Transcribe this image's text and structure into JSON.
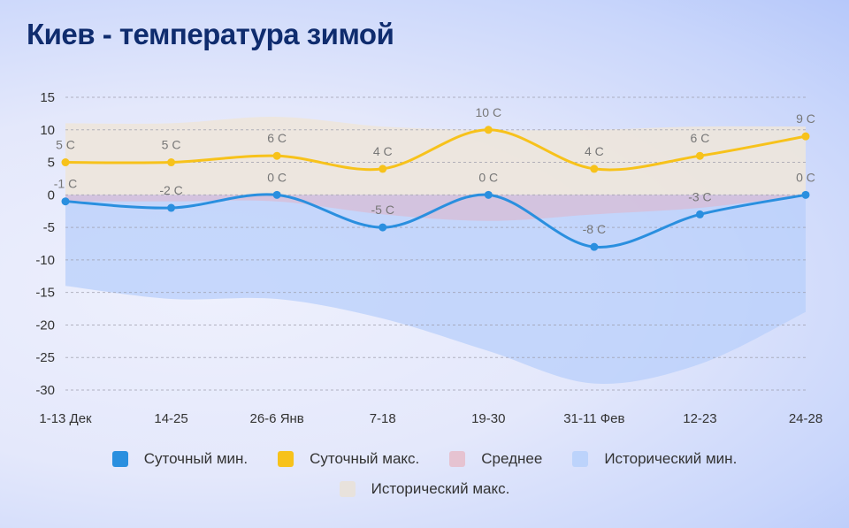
{
  "chart_data": {
    "type": "line",
    "title": "Киев - температура зимой",
    "categories": [
      "1-13 Дек",
      "14-25",
      "26-6 Янв",
      "7-18",
      "19-30",
      "31-11 Фев",
      "12-23",
      "24-28"
    ],
    "ylim": [
      -30,
      15
    ],
    "yticks": [
      15,
      10,
      5,
      0,
      -5,
      -10,
      -15,
      -20,
      -25,
      -30
    ],
    "grid": true,
    "legend_position": "bottom",
    "series": [
      {
        "name": "Суточный мин.",
        "kind": "line",
        "color": "#2a8fdf",
        "values": [
          -1,
          -2,
          0,
          -5,
          0,
          -8,
          -3,
          0
        ],
        "labels": [
          "-1 C",
          "-2 C",
          "0 C",
          "-5 C",
          "0 C",
          "-8 C",
          "-3 C",
          "0 C"
        ]
      },
      {
        "name": "Суточный макс.",
        "kind": "line",
        "color": "#f7c21b",
        "values": [
          5,
          5,
          6,
          4,
          10,
          4,
          6,
          9
        ],
        "labels": [
          "5 C",
          "5 C",
          "6 C",
          "4 C",
          "10 C",
          "4 C",
          "6 C",
          "9 C"
        ]
      },
      {
        "name": "Среднее",
        "kind": "area",
        "color": "#e6c3d1",
        "values": [
          -1,
          -1,
          -1,
          -3,
          -4,
          -3,
          -2,
          0
        ]
      },
      {
        "name": "Исторический мин.",
        "kind": "area",
        "color": "#bcd3fb",
        "values": [
          -14,
          -16,
          -16,
          -19,
          -24,
          -29,
          -26,
          -18
        ]
      },
      {
        "name": "Исторический макс.",
        "kind": "area",
        "color": "#ede6dc",
        "values": [
          11,
          11,
          12,
          10.5,
          10,
          10,
          10.5,
          10.5
        ]
      }
    ]
  }
}
